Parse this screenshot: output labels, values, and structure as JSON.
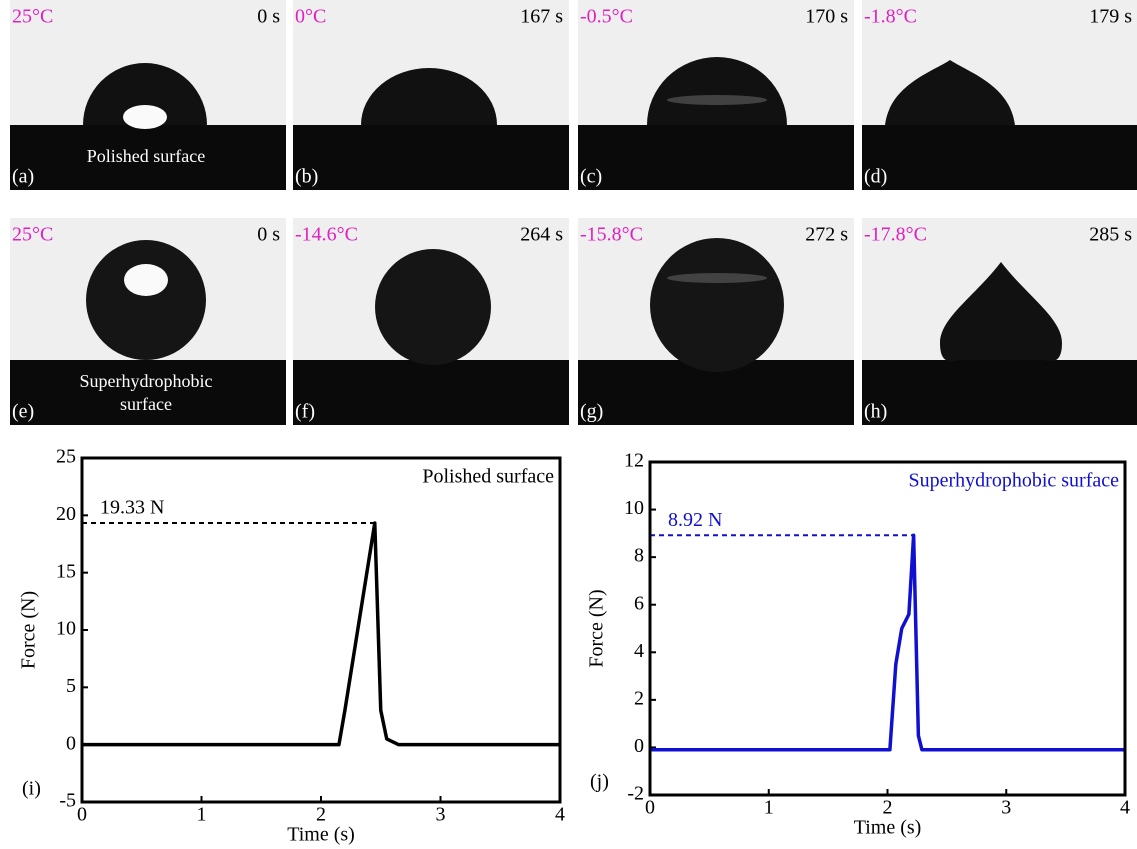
{
  "panels": [
    {
      "letter": "(a)",
      "temperature": "25°C",
      "time": "0 s",
      "caption": [
        "Polished surface"
      ]
    },
    {
      "letter": "(b)",
      "temperature": "0°C",
      "time": "167 s"
    },
    {
      "letter": "(c)",
      "temperature": "-0.5°C",
      "time": "170 s"
    },
    {
      "letter": "(d)",
      "temperature": "-1.8°C",
      "time": "179 s"
    },
    {
      "letter": "(e)",
      "temperature": "25°C",
      "time": "0 s",
      "caption": [
        "Superhydrophobic",
        "surface"
      ]
    },
    {
      "letter": "(f)",
      "temperature": "-14.6°C",
      "time": "264 s"
    },
    {
      "letter": "(g)",
      "temperature": "-15.8°C",
      "time": "272 s"
    },
    {
      "letter": "(h)",
      "temperature": "-17.8°C",
      "time": "285 s"
    }
  ],
  "chart_data": [
    {
      "type": "line",
      "panel_label": "(i)",
      "label": "Polished surface",
      "xlabel": "Time (s)",
      "ylabel": "Force (N)",
      "x": [
        0,
        2.15,
        2.2,
        2.45,
        2.5,
        2.55,
        2.65,
        4
      ],
      "series": [
        {
          "color": "#000000",
          "values": [
            0,
            0,
            3,
            19.33,
            3,
            0.5,
            0,
            0
          ]
        }
      ],
      "peak": {
        "x": 2.45,
        "value": 19.33,
        "label": "19.33 N"
      },
      "xlim": [
        0,
        4
      ],
      "ylim": [
        -5,
        25
      ],
      "xticks": [
        0,
        1,
        2,
        3,
        4
      ],
      "yticks": [
        -5,
        0,
        5,
        10,
        15,
        20,
        25
      ]
    },
    {
      "type": "line",
      "panel_label": "(j)",
      "label": "Superhydrophobic surface",
      "xlabel": "Time (s)",
      "ylabel": "Force (N)",
      "x": [
        0,
        2.02,
        2.07,
        2.12,
        2.18,
        2.22,
        2.26,
        2.29,
        4
      ],
      "series": [
        {
          "color": "#1010d0",
          "values": [
            -0.1,
            -0.1,
            3.5,
            5.0,
            5.6,
            8.92,
            0.5,
            -0.1,
            -0.1
          ]
        }
      ],
      "peak": {
        "x": 2.22,
        "value": 8.92,
        "label": "8.92 N"
      },
      "xlim": [
        0,
        4
      ],
      "ylim": [
        -2,
        12
      ],
      "xticks": [
        0,
        1,
        2,
        3,
        4
      ],
      "yticks": [
        -2,
        0,
        2,
        4,
        6,
        8,
        10,
        12
      ]
    }
  ]
}
